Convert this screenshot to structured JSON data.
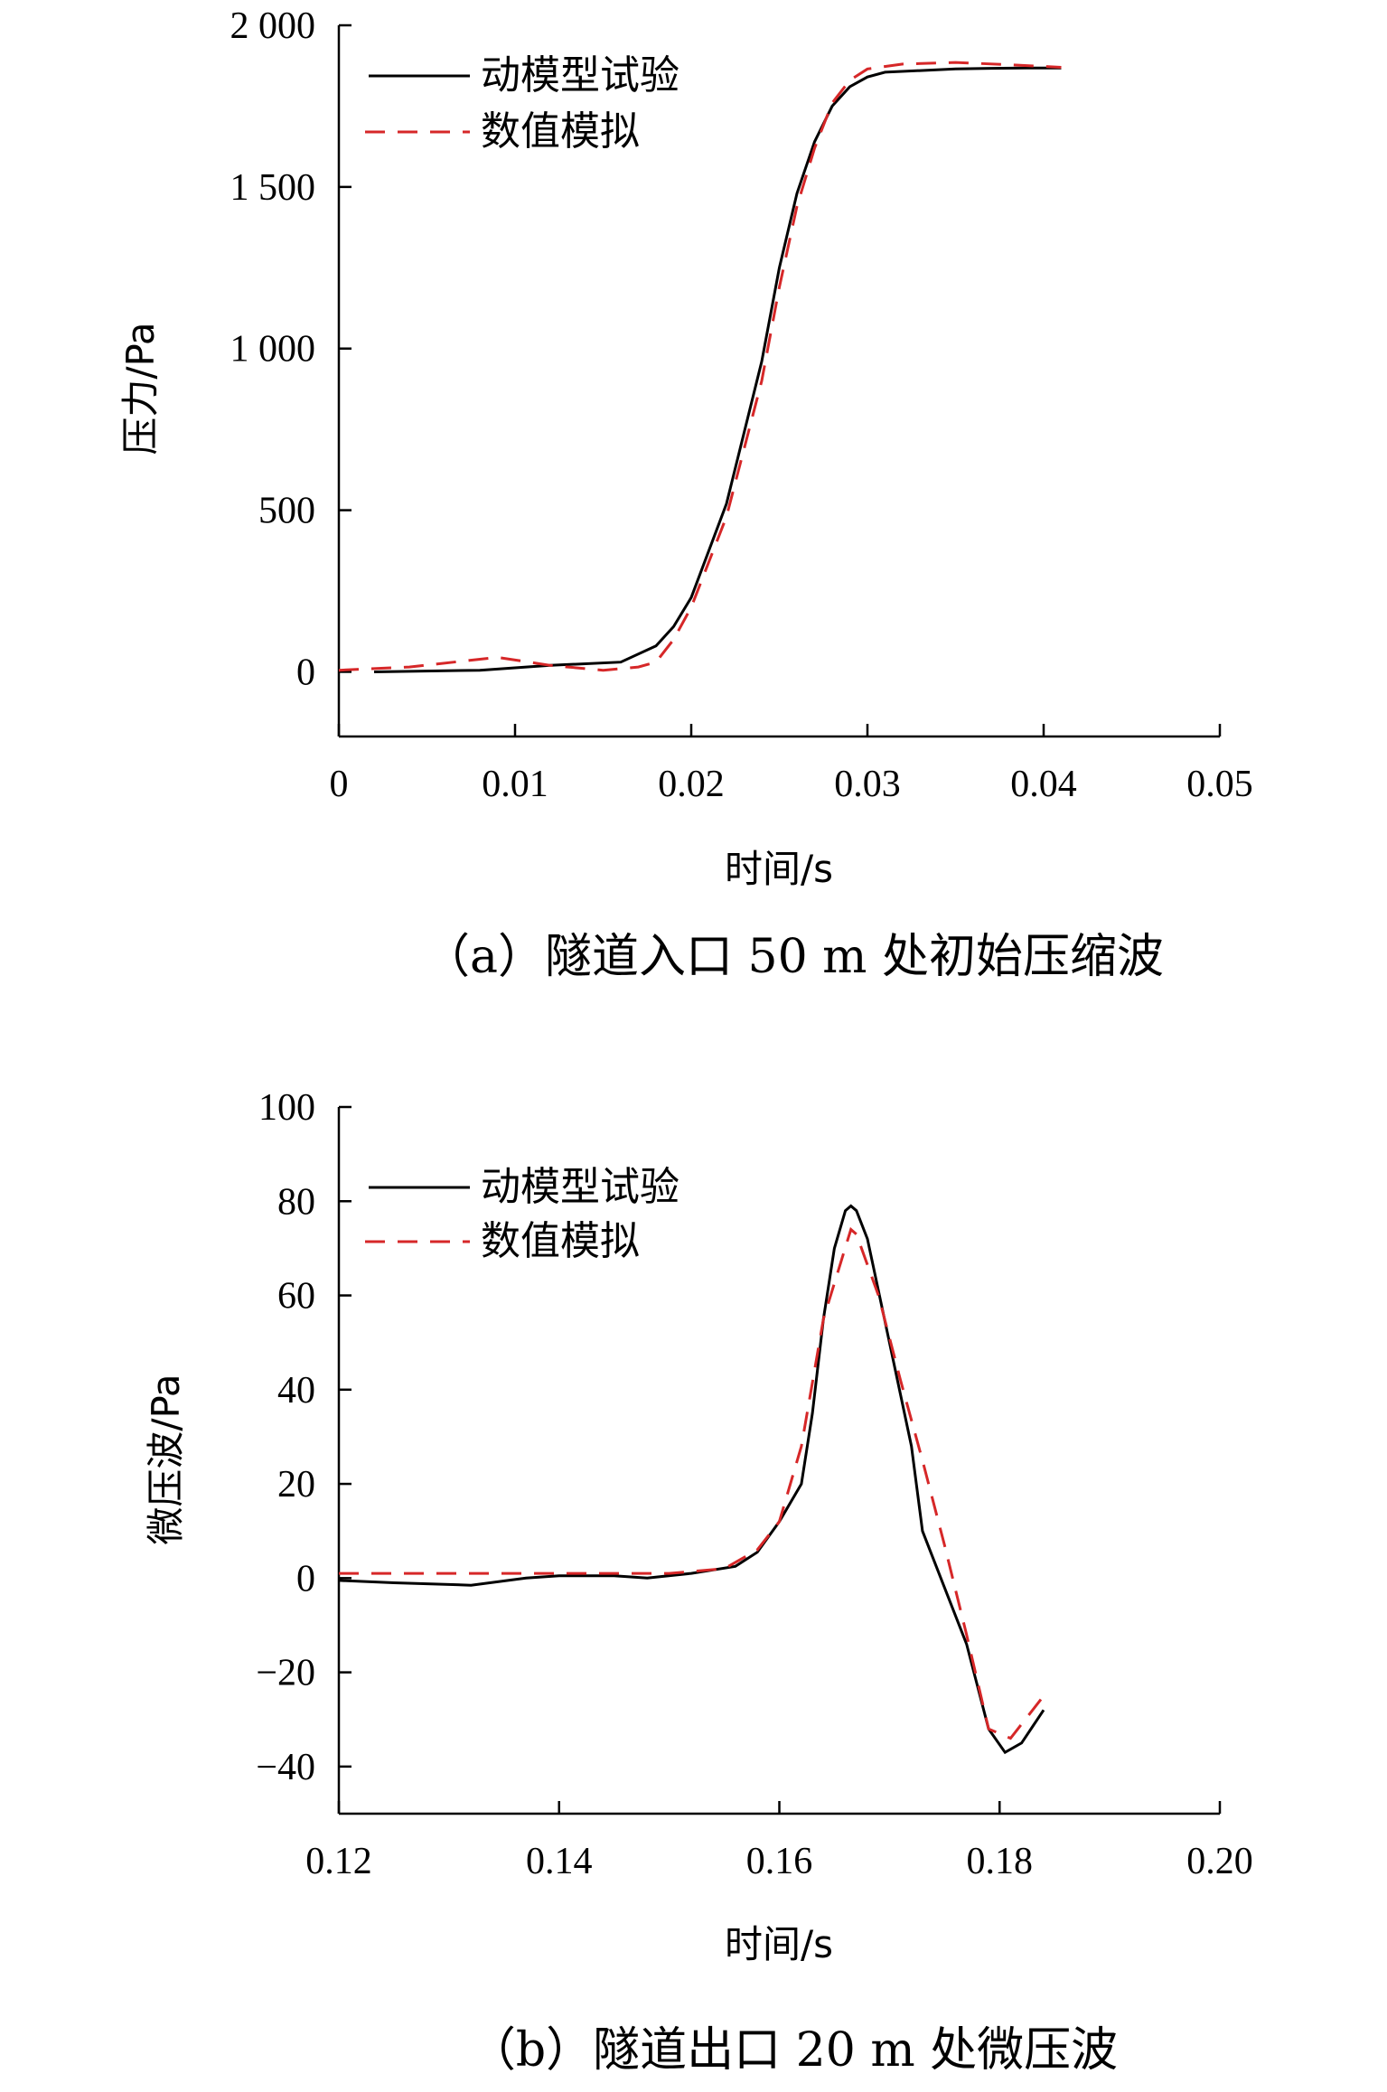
{
  "chart_data": [
    {
      "type": "line",
      "caption": "（a）隧道入口 50 m 处初始压缩波",
      "xlabel": "时间/s",
      "ylabel": "压力/Pa",
      "xlim": [
        0,
        0.05
      ],
      "ylim": [
        -200,
        2000
      ],
      "xticks": [
        0,
        0.01,
        0.02,
        0.03,
        0.04,
        0.05
      ],
      "xtick_labels": [
        "0",
        "0.01",
        "0.02",
        "0.03",
        "0.04",
        "0.05"
      ],
      "yticks": [
        0,
        500,
        1000,
        1500,
        2000
      ],
      "ytick_labels": [
        "0",
        "500",
        "1 000",
        "1 500",
        "2 000"
      ],
      "legend": "top-left",
      "grid": false,
      "series": [
        {
          "name": "动模型试验",
          "color": "#000000",
          "style": "solid",
          "x": [
            0.002,
            0.008,
            0.012,
            0.016,
            0.018,
            0.019,
            0.02,
            0.022,
            0.024,
            0.025,
            0.026,
            0.027,
            0.028,
            0.029,
            0.03,
            0.031,
            0.033,
            0.035,
            0.037,
            0.039,
            0.041
          ],
          "y": [
            0,
            5,
            20,
            30,
            80,
            140,
            230,
            520,
            960,
            1250,
            1480,
            1640,
            1750,
            1810,
            1840,
            1855,
            1860,
            1865,
            1867,
            1868,
            1868
          ]
        },
        {
          "name": "数值模拟",
          "color": "#d62728",
          "style": "dashed",
          "x": [
            0.0,
            0.004,
            0.009,
            0.012,
            0.015,
            0.017,
            0.018,
            0.019,
            0.02,
            0.022,
            0.024,
            0.025,
            0.026,
            0.027,
            0.028,
            0.029,
            0.03,
            0.032,
            0.035,
            0.038,
            0.041
          ],
          "y": [
            5,
            15,
            45,
            20,
            5,
            15,
            30,
            100,
            200,
            480,
            900,
            1190,
            1440,
            1620,
            1760,
            1830,
            1865,
            1880,
            1885,
            1878,
            1870
          ]
        }
      ]
    },
    {
      "type": "line",
      "caption": "（b）隧道出口 20 m 处微压波",
      "xlabel": "时间/s",
      "ylabel": "微压波/Pa",
      "xlim": [
        0.12,
        0.2
      ],
      "ylim": [
        -50,
        100
      ],
      "xticks": [
        0.12,
        0.14,
        0.16,
        0.18,
        0.2
      ],
      "xtick_labels": [
        "0.12",
        "0.14",
        "0.16",
        "0.18",
        "0.20"
      ],
      "yticks": [
        -40,
        -20,
        0,
        20,
        40,
        60,
        80,
        100
      ],
      "ytick_labels": [
        "−40",
        "−20",
        "0",
        "20",
        "40",
        "60",
        "80",
        "100"
      ],
      "legend": "top-left",
      "grid": false,
      "series": [
        {
          "name": "动模型试验",
          "color": "#000000",
          "style": "solid",
          "x": [
            0.12,
            0.125,
            0.132,
            0.137,
            0.14,
            0.145,
            0.148,
            0.152,
            0.156,
            0.158,
            0.16,
            0.162,
            0.163,
            0.164,
            0.165,
            0.166,
            0.1665,
            0.167,
            0.168,
            0.17,
            0.172,
            0.173,
            0.175,
            0.177,
            0.179,
            0.1805,
            0.182,
            0.184
          ],
          "y": [
            -0.5,
            -1,
            -1.5,
            0,
            0.5,
            0.5,
            0,
            1,
            2.5,
            5.5,
            12,
            20,
            35,
            55,
            70,
            78,
            79,
            78,
            72,
            50,
            28,
            10,
            -2,
            -14,
            -32,
            -37,
            -35,
            -28
          ]
        },
        {
          "name": "数值模拟",
          "color": "#d62728",
          "style": "dashed",
          "x": [
            0.12,
            0.13,
            0.14,
            0.15,
            0.155,
            0.158,
            0.16,
            0.162,
            0.164,
            0.1665,
            0.167,
            0.169,
            0.171,
            0.173,
            0.175,
            0.177,
            0.179,
            0.181,
            0.184
          ],
          "y": [
            1,
            1,
            1,
            1,
            2,
            6,
            12,
            28,
            55,
            74,
            73,
            60,
            42,
            25,
            7,
            -12,
            -32,
            -34,
            -25
          ]
        }
      ]
    }
  ]
}
